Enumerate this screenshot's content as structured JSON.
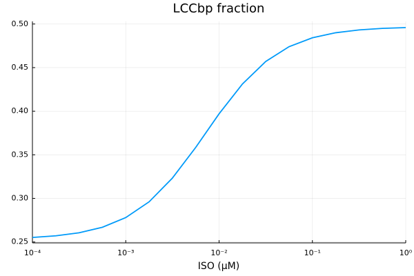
{
  "chart_data": {
    "type": "line",
    "title": "LCCbp fraction",
    "x_label": "ISO (μM)",
    "x": [
      0.0001,
      0.000178,
      0.000316,
      0.000562,
      0.001,
      0.00178,
      0.00316,
      0.00562,
      0.01,
      0.0178,
      0.0316,
      0.0562,
      0.1,
      0.178,
      0.316,
      0.562,
      1
    ],
    "series": [
      {
        "color": "#009af9",
        "values": [
          0.2552,
          0.2571,
          0.2606,
          0.2669,
          0.278,
          0.2961,
          0.3233,
          0.3585,
          0.397,
          0.4312,
          0.457,
          0.474,
          0.4842,
          0.49,
          0.4932,
          0.495,
          0.4959
        ]
      }
    ],
    "xscale": "log",
    "xlim": [
      0.0001,
      1
    ],
    "xticks": [
      {
        "value": 0.0001,
        "label": "10⁻⁴"
      },
      {
        "value": 0.001,
        "label": "10⁻³"
      },
      {
        "value": 0.01,
        "label": "10⁻²"
      },
      {
        "value": 0.1,
        "label": "10⁻¹"
      },
      {
        "value": 1,
        "label": "10⁰"
      }
    ],
    "ylim": [
      0.249,
      0.503
    ],
    "yticks": [
      0.25,
      {
        "value": 0.3,
        "label": "0.30"
      },
      0.35,
      {
        "value": 0.4,
        "label": "0.40"
      },
      0.45,
      {
        "value": 0.5,
        "label": "0.50"
      }
    ],
    "grid": true
  }
}
